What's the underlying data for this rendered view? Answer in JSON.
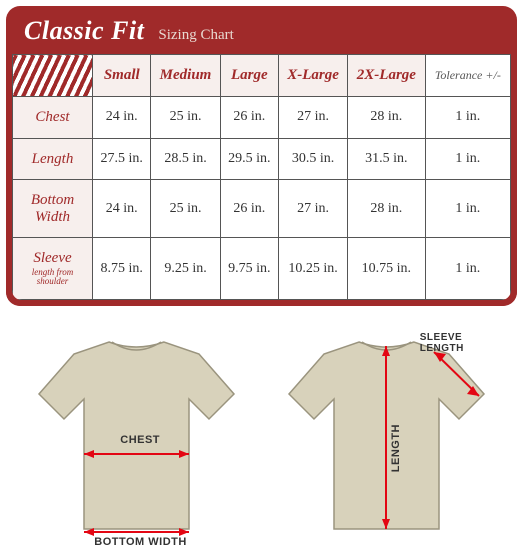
{
  "header": {
    "title": "Classic Fit",
    "subtitle": "Sizing Chart"
  },
  "columns": [
    "Small",
    "Medium",
    "Large",
    "X-Large",
    "2X-Large"
  ],
  "tolerance_header": "Tolerance +/-",
  "rows": [
    {
      "label": "Chest",
      "sublabel": "",
      "values": [
        "24 in.",
        "25 in.",
        "26 in.",
        "27 in.",
        "28 in."
      ],
      "tolerance": "1 in."
    },
    {
      "label": "Length",
      "sublabel": "",
      "values": [
        "27.5 in.",
        "28.5 in.",
        "29.5 in.",
        "30.5 in.",
        "31.5 in."
      ],
      "tolerance": "1 in."
    },
    {
      "label": "Bottom Width",
      "sublabel": "",
      "values": [
        "24 in.",
        "25 in.",
        "26 in.",
        "27 in.",
        "28 in."
      ],
      "tolerance": "1 in."
    },
    {
      "label": "Sleeve",
      "sublabel": "length from shoulder",
      "values": [
        "8.75 in.",
        "9.25 in.",
        "9.75 in.",
        "10.25 in.",
        "10.75 in."
      ],
      "tolerance": "1 in."
    }
  ],
  "diagram": {
    "chest_label": "CHEST",
    "bottom_label": "BOTTOM WIDTH",
    "length_label": "LENGTH",
    "sleeve_label": "SLEEVE LENGTH"
  },
  "colors": {
    "brand": "#a02a2a",
    "arrow": "#e30613",
    "shirt_fill": "#d8d2bb",
    "shirt_stroke": "#9a947e"
  }
}
